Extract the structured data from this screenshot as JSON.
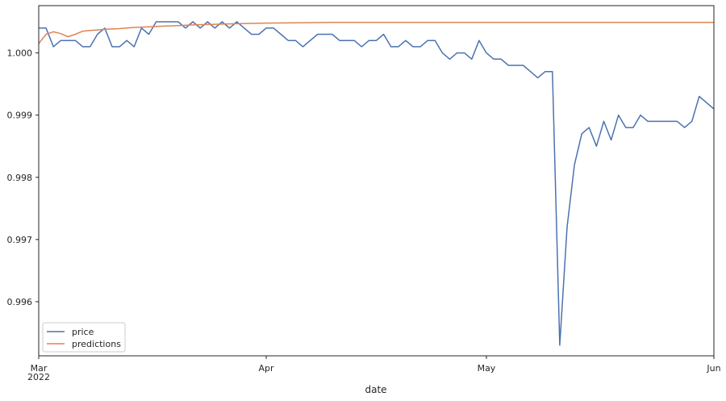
{
  "chart_data": {
    "type": "line",
    "xlabel": "date",
    "ylabel": "",
    "x_tick_labels": [
      {
        "date": "2022-03-01",
        "label": "Mar",
        "sublabel": "2022"
      },
      {
        "date": "2022-04-01",
        "label": "Apr",
        "sublabel": ""
      },
      {
        "date": "2022-05-01",
        "label": "May",
        "sublabel": ""
      },
      {
        "date": "2022-06-01",
        "label": "Jun",
        "sublabel": ""
      }
    ],
    "y_tick_values": [
      0.996,
      0.997,
      0.998,
      0.999,
      1.0
    ],
    "y_tick_labels": [
      "0.996",
      "0.997",
      "0.998",
      "0.999",
      "1.000"
    ],
    "xlim": [
      "2022-03-01",
      "2022-06-01"
    ],
    "ylim": [
      0.99513,
      1.00076
    ],
    "grid": false,
    "legend_position": "lower-left",
    "series": [
      {
        "name": "price",
        "color": "#4c72b0",
        "points": [
          [
            "2022-03-01",
            1.0004
          ],
          [
            "2022-03-02",
            1.0004
          ],
          [
            "2022-03-03",
            1.0001
          ],
          [
            "2022-03-04",
            1.0002
          ],
          [
            "2022-03-05",
            1.0002
          ],
          [
            "2022-03-06",
            1.0002
          ],
          [
            "2022-03-07",
            1.0001
          ],
          [
            "2022-03-08",
            1.0001
          ],
          [
            "2022-03-09",
            1.0003
          ],
          [
            "2022-03-10",
            1.0004
          ],
          [
            "2022-03-11",
            1.0001
          ],
          [
            "2022-03-12",
            1.0001
          ],
          [
            "2022-03-13",
            1.0002
          ],
          [
            "2022-03-14",
            1.0001
          ],
          [
            "2022-03-15",
            1.0004
          ],
          [
            "2022-03-16",
            1.0003
          ],
          [
            "2022-03-17",
            1.0005
          ],
          [
            "2022-03-18",
            1.0005
          ],
          [
            "2022-03-19",
            1.0005
          ],
          [
            "2022-03-20",
            1.0005
          ],
          [
            "2022-03-21",
            1.0004
          ],
          [
            "2022-03-22",
            1.0005
          ],
          [
            "2022-03-23",
            1.0004
          ],
          [
            "2022-03-24",
            1.0005
          ],
          [
            "2022-03-25",
            1.0004
          ],
          [
            "2022-03-26",
            1.0005
          ],
          [
            "2022-03-27",
            1.0004
          ],
          [
            "2022-03-28",
            1.0005
          ],
          [
            "2022-03-29",
            1.0004
          ],
          [
            "2022-03-30",
            1.0003
          ],
          [
            "2022-03-31",
            1.0003
          ],
          [
            "2022-04-01",
            1.0004
          ],
          [
            "2022-04-02",
            1.0004
          ],
          [
            "2022-04-03",
            1.0003
          ],
          [
            "2022-04-04",
            1.0002
          ],
          [
            "2022-04-05",
            1.0002
          ],
          [
            "2022-04-06",
            1.0001
          ],
          [
            "2022-04-07",
            1.0002
          ],
          [
            "2022-04-08",
            1.0003
          ],
          [
            "2022-04-09",
            1.0003
          ],
          [
            "2022-04-10",
            1.0003
          ],
          [
            "2022-04-11",
            1.0002
          ],
          [
            "2022-04-12",
            1.0002
          ],
          [
            "2022-04-13",
            1.0002
          ],
          [
            "2022-04-14",
            1.0001
          ],
          [
            "2022-04-15",
            1.0002
          ],
          [
            "2022-04-16",
            1.0002
          ],
          [
            "2022-04-17",
            1.0003
          ],
          [
            "2022-04-18",
            1.0001
          ],
          [
            "2022-04-19",
            1.0001
          ],
          [
            "2022-04-20",
            1.0002
          ],
          [
            "2022-04-21",
            1.0001
          ],
          [
            "2022-04-22",
            1.0001
          ],
          [
            "2022-04-23",
            1.0002
          ],
          [
            "2022-04-24",
            1.0002
          ],
          [
            "2022-04-25",
            1.0
          ],
          [
            "2022-04-26",
            0.9999
          ],
          [
            "2022-04-27",
            1.0
          ],
          [
            "2022-04-28",
            1.0
          ],
          [
            "2022-04-29",
            0.9999
          ],
          [
            "2022-04-30",
            1.0002
          ],
          [
            "2022-05-01",
            1.0
          ],
          [
            "2022-05-02",
            0.9999
          ],
          [
            "2022-05-03",
            0.9999
          ],
          [
            "2022-05-04",
            0.9998
          ],
          [
            "2022-05-05",
            0.9998
          ],
          [
            "2022-05-06",
            0.9998
          ],
          [
            "2022-05-07",
            0.9997
          ],
          [
            "2022-05-08",
            0.9996
          ],
          [
            "2022-05-09",
            0.9997
          ],
          [
            "2022-05-10",
            0.9997
          ],
          [
            "2022-05-11",
            0.9953
          ],
          [
            "2022-05-12",
            0.9972
          ],
          [
            "2022-05-13",
            0.9982
          ],
          [
            "2022-05-14",
            0.9987
          ],
          [
            "2022-05-15",
            0.9988
          ],
          [
            "2022-05-16",
            0.9985
          ],
          [
            "2022-05-17",
            0.9989
          ],
          [
            "2022-05-18",
            0.9986
          ],
          [
            "2022-05-19",
            0.999
          ],
          [
            "2022-05-20",
            0.9988
          ],
          [
            "2022-05-21",
            0.9988
          ],
          [
            "2022-05-22",
            0.999
          ],
          [
            "2022-05-23",
            0.9989
          ],
          [
            "2022-05-24",
            0.9989
          ],
          [
            "2022-05-25",
            0.9989
          ],
          [
            "2022-05-26",
            0.9989
          ],
          [
            "2022-05-27",
            0.9989
          ],
          [
            "2022-05-28",
            0.9988
          ],
          [
            "2022-05-29",
            0.9989
          ],
          [
            "2022-05-30",
            0.9993
          ],
          [
            "2022-05-31",
            0.9992
          ],
          [
            "2022-06-01",
            0.9991
          ]
        ]
      },
      {
        "name": "predictions",
        "color": "#dd8452",
        "points": [
          [
            "2022-03-01",
            1.00015
          ],
          [
            "2022-03-02",
            1.0003
          ],
          [
            "2022-03-03",
            1.00034
          ],
          [
            "2022-03-04",
            1.00031
          ],
          [
            "2022-03-05",
            1.00026
          ],
          [
            "2022-03-06",
            1.0003
          ],
          [
            "2022-03-07",
            1.00035
          ],
          [
            "2022-03-08",
            1.00036
          ],
          [
            "2022-03-09",
            1.00037
          ],
          [
            "2022-03-10",
            1.00038
          ],
          [
            "2022-03-12",
            1.00039
          ],
          [
            "2022-03-14",
            1.00041
          ],
          [
            "2022-03-16",
            1.00042
          ],
          [
            "2022-03-18",
            1.00043
          ],
          [
            "2022-03-20",
            1.00044
          ],
          [
            "2022-03-22",
            1.00045
          ],
          [
            "2022-03-25",
            1.00046
          ],
          [
            "2022-03-28",
            1.00047
          ],
          [
            "2022-04-01",
            1.00048
          ],
          [
            "2022-04-10",
            1.00049
          ],
          [
            "2022-04-20",
            1.00049
          ],
          [
            "2022-05-01",
            1.00049
          ],
          [
            "2022-05-15",
            1.00049
          ],
          [
            "2022-06-01",
            1.00049
          ]
        ]
      }
    ]
  }
}
